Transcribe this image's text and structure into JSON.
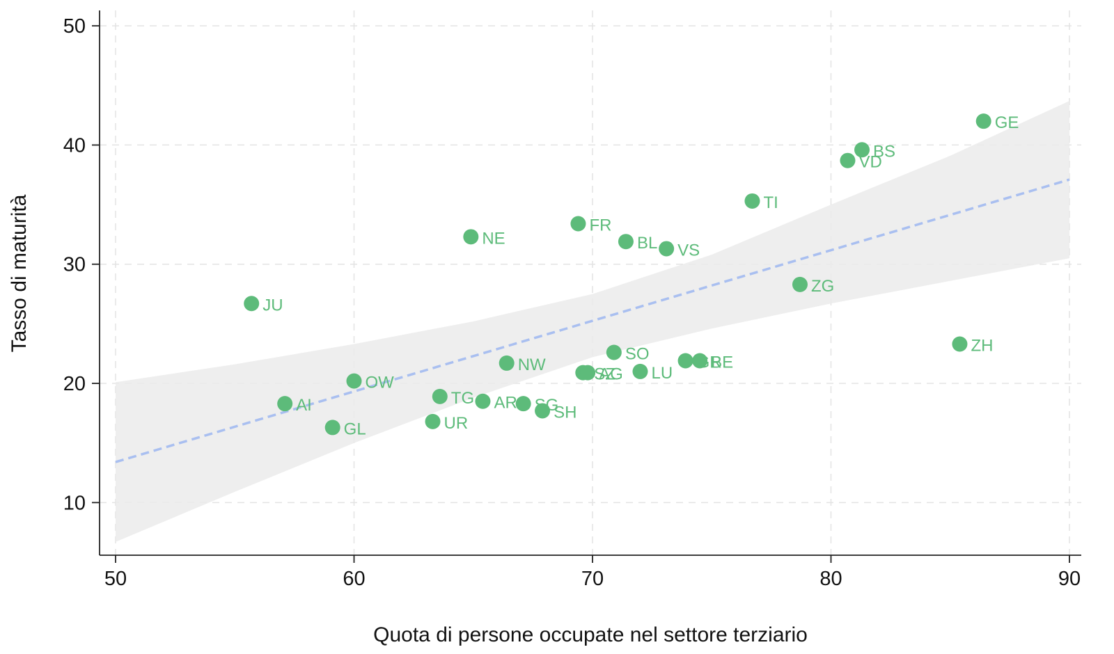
{
  "colors": {
    "points": "#5dbb7a",
    "fit_line": "#a9bff0",
    "confidence_band": "#ebebeb",
    "grid": "#e3e3e3",
    "axis": "#222222"
  },
  "chart_data": {
    "type": "scatter",
    "title": "",
    "xlabel": "Quota di persone occupate nel settore terziario",
    "ylabel": "Tasso di maturità",
    "xlim": [
      50,
      90
    ],
    "ylim": [
      5,
      51
    ],
    "xticks": [
      50,
      60,
      70,
      80,
      90
    ],
    "yticks": [
      10,
      20,
      30,
      40,
      50
    ],
    "grid": true,
    "points": [
      {
        "label": "JU",
        "x": 55.7,
        "y": 26.7
      },
      {
        "label": "AI",
        "x": 57.1,
        "y": 18.3
      },
      {
        "label": "GL",
        "x": 59.1,
        "y": 16.3
      },
      {
        "label": "OW",
        "x": 60.0,
        "y": 20.2
      },
      {
        "label": "UR",
        "x": 63.3,
        "y": 16.8
      },
      {
        "label": "TG",
        "x": 63.6,
        "y": 18.9
      },
      {
        "label": "NE",
        "x": 64.9,
        "y": 32.3
      },
      {
        "label": "AR",
        "x": 65.4,
        "y": 18.5
      },
      {
        "label": "NW",
        "x": 66.4,
        "y": 21.7
      },
      {
        "label": "SG",
        "x": 67.1,
        "y": 18.3
      },
      {
        "label": "SH",
        "x": 67.9,
        "y": 17.7
      },
      {
        "label": "FR",
        "x": 69.4,
        "y": 33.4
      },
      {
        "label": "SZ",
        "x": 69.6,
        "y": 20.9
      },
      {
        "label": "AG",
        "x": 69.8,
        "y": 20.9
      },
      {
        "label": "SO",
        "x": 70.9,
        "y": 22.6
      },
      {
        "label": "BL",
        "x": 71.4,
        "y": 31.9
      },
      {
        "label": "LU",
        "x": 72.0,
        "y": 21.0
      },
      {
        "label": "VS",
        "x": 73.1,
        "y": 31.3
      },
      {
        "label": "GR",
        "x": 73.9,
        "y": 21.9
      },
      {
        "label": "BE",
        "x": 74.5,
        "y": 21.9
      },
      {
        "label": "TI",
        "x": 76.7,
        "y": 35.3
      },
      {
        "label": "ZG",
        "x": 78.7,
        "y": 28.3
      },
      {
        "label": "VD",
        "x": 80.7,
        "y": 38.7
      },
      {
        "label": "BS",
        "x": 81.3,
        "y": 39.6
      },
      {
        "label": "ZH",
        "x": 85.4,
        "y": 23.3
      },
      {
        "label": "GE",
        "x": 86.4,
        "y": 42.0
      }
    ],
    "fit_line": {
      "x": [
        50,
        90
      ],
      "y": [
        13.4,
        37.1
      ]
    },
    "confidence_band": {
      "x": [
        50,
        55,
        60,
        65,
        70,
        75,
        80,
        85,
        90
      ],
      "lower": [
        6.7,
        10.9,
        15.0,
        18.8,
        22.2,
        24.6,
        26.7,
        28.6,
        30.5
      ],
      "upper": [
        20.1,
        21.6,
        23.3,
        25.2,
        27.5,
        30.8,
        35.0,
        39.1,
        43.7
      ]
    }
  }
}
